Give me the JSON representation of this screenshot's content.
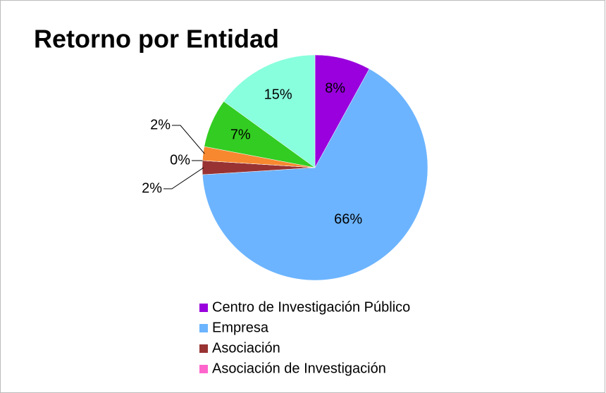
{
  "chart_data": {
    "type": "pie",
    "title": "Retorno por Entidad",
    "categories": [
      "Centro de Investigación Público",
      "Empresa",
      "Asociación",
      "Asociación de Investigación",
      null,
      null,
      null
    ],
    "values": [
      8,
      66,
      2,
      0,
      2,
      7,
      15
    ],
    "value_labels": [
      "8%",
      "66%",
      "2%",
      "0%",
      "2%",
      "7%",
      "15%"
    ],
    "colors": [
      "#9900dd",
      "#6cb4ff",
      "#993333",
      "#ff66cc",
      "#f7882f",
      "#33cc22",
      "#88ffdd"
    ],
    "legend": "bottom"
  }
}
